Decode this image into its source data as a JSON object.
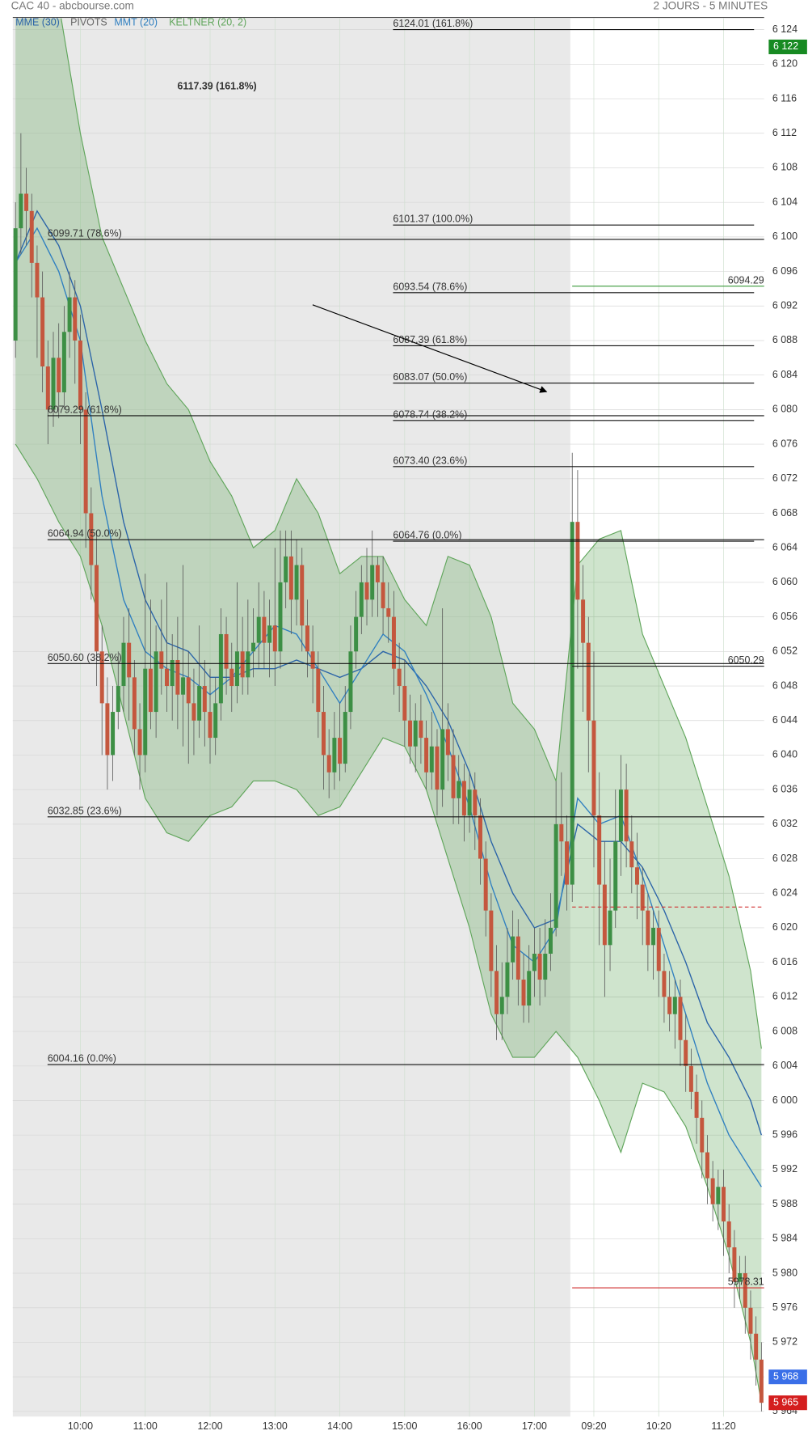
{
  "chart_data": {
    "type": "candlestick",
    "title": "CAC 40 - abcbourse.com",
    "subtitle": "2 JOURS - 5 MINUTES",
    "pivots_label": "PIVOTS",
    "color_up": "#3d8f45",
    "color_down": "#c4573e",
    "grid": true,
    "ylim": [
      5963.4,
      6125.3
    ],
    "yticks": [
      {
        "value": 5964,
        "label": "5 964"
      },
      {
        "value": 5968,
        "label": "5 968"
      },
      {
        "value": 5972,
        "label": "5 972"
      },
      {
        "value": 5976,
        "label": "5 976"
      },
      {
        "value": 5980,
        "label": "5 980"
      },
      {
        "value": 5984,
        "label": "5 984"
      },
      {
        "value": 5988,
        "label": "5 988"
      },
      {
        "value": 5992,
        "label": "5 992"
      },
      {
        "value": 5996,
        "label": "5 996"
      },
      {
        "value": 6000,
        "label": "6 000"
      },
      {
        "value": 6004,
        "label": "6 004"
      },
      {
        "value": 6008,
        "label": "6 008"
      },
      {
        "value": 6012,
        "label": "6 012"
      },
      {
        "value": 6016,
        "label": "6 016"
      },
      {
        "value": 6020,
        "label": "6 020"
      },
      {
        "value": 6024,
        "label": "6 024"
      },
      {
        "value": 6028,
        "label": "6 028"
      },
      {
        "value": 6032,
        "label": "6 032"
      },
      {
        "value": 6036,
        "label": "6 036"
      },
      {
        "value": 6040,
        "label": "6 040"
      },
      {
        "value": 6044,
        "label": "6 044"
      },
      {
        "value": 6048,
        "label": "6 048"
      },
      {
        "value": 6052,
        "label": "6 052"
      },
      {
        "value": 6056,
        "label": "6 056"
      },
      {
        "value": 6060,
        "label": "6 060"
      },
      {
        "value": 6064,
        "label": "6 064"
      },
      {
        "value": 6068,
        "label": "6 068"
      },
      {
        "value": 6072,
        "label": "6 072"
      },
      {
        "value": 6076,
        "label": "6 076"
      },
      {
        "value": 6080,
        "label": "6 080"
      },
      {
        "value": 6084,
        "label": "6 084"
      },
      {
        "value": 6088,
        "label": "6 088"
      },
      {
        "value": 6092,
        "label": "6 092"
      },
      {
        "value": 6096,
        "label": "6 096"
      },
      {
        "value": 6100,
        "label": "6 100"
      },
      {
        "value": 6104,
        "label": "6 104"
      },
      {
        "value": 6108,
        "label": "6 108"
      },
      {
        "value": 6112,
        "label": "6 112"
      },
      {
        "value": 6116,
        "label": "6 116"
      },
      {
        "value": 6120,
        "label": "6 120"
      },
      {
        "value": 6124,
        "label": "6 124"
      }
    ],
    "xticks": [
      {
        "value": 12,
        "label": "10:00"
      },
      {
        "value": 24,
        "label": "11:00"
      },
      {
        "value": 36,
        "label": "12:00"
      },
      {
        "value": 48,
        "label": "13:00"
      },
      {
        "value": 60,
        "label": "14:00"
      },
      {
        "value": 72,
        "label": "15:00"
      },
      {
        "value": 84,
        "label": "16:00"
      },
      {
        "value": 96,
        "label": "17:00"
      },
      {
        "value": 107,
        "label": "09:20"
      },
      {
        "value": 119,
        "label": "10:20"
      },
      {
        "value": 131,
        "label": "11:20"
      }
    ],
    "open": [
      6088,
      6101,
      6105,
      6103,
      6097,
      6093,
      6085,
      6080,
      6086,
      6082,
      6089,
      6093,
      6088,
      6080,
      6068,
      6062,
      6052,
      6046,
      6040,
      6045,
      6048,
      6053,
      6049,
      6043,
      6040,
      6050,
      6045,
      6052,
      6050,
      6048,
      6051,
      6047,
      6049,
      6046,
      6044,
      6048,
      6045,
      6042,
      6046,
      6054,
      6050,
      6048,
      6052,
      6049,
      6052,
      6053,
      6056,
      6053,
      6055,
      6052,
      6060,
      6063,
      6058,
      6062,
      6055,
      6052,
      6050,
      6045,
      6040,
      6038,
      6042,
      6039,
      6045,
      6052,
      6056,
      6060,
      6058,
      6062,
      6060,
      6057,
      6056,
      6050,
      6048,
      6044,
      6041,
      6044,
      6042,
      6038,
      6041,
      6036,
      6043,
      6040,
      6035,
      6037,
      6033,
      6036,
      6033,
      6028,
      6022,
      6015,
      6010,
      6012,
      6016,
      6019,
      6014,
      6011,
      6015,
      6017,
      6014,
      6017,
      6020,
      6032,
      6030,
      6025,
      6067,
      6058,
      6053,
      6044,
      6033,
      6025,
      6018,
      6022,
      6030,
      6036,
      6030,
      6027,
      6025,
      6022,
      6018,
      6020,
      6015,
      6012,
      6010,
      6012,
      6007,
      6004,
      6001,
      5998,
      5994,
      5991,
      5988,
      5990,
      5986,
      5983,
      5979,
      5980,
      5976,
      5973,
      5970
    ],
    "high": [
      6104,
      6112,
      6108,
      6105,
      6099,
      6096,
      6088,
      6089,
      6090,
      6092,
      6096,
      6095,
      6091,
      6082,
      6071,
      6066,
      6055,
      6049,
      6048,
      6052,
      6056,
      6057,
      6051,
      6046,
      6061,
      6058,
      6055,
      6058,
      6060,
      6054,
      6056,
      6062,
      6052,
      6050,
      6055,
      6051,
      6050,
      6049,
      6057,
      6056,
      6053,
      6060,
      6056,
      6058,
      6057,
      6060,
      6059,
      6058,
      6064,
      6066,
      6066,
      6066,
      6065,
      6064,
      6058,
      6055,
      6052,
      6048,
      6043,
      6045,
      6046,
      6048,
      6055,
      6059,
      6062,
      6064,
      6066,
      6063,
      6063,
      6060,
      6059,
      6053,
      6051,
      6047,
      6046,
      6047,
      6044,
      6045,
      6043,
      6057,
      6046,
      6043,
      6040,
      6039,
      6038,
      6038,
      6035,
      6030,
      6024,
      6018,
      6016,
      6020,
      6022,
      6021,
      6017,
      6018,
      6020,
      6020,
      6021,
      6024,
      6037,
      6038,
      6033,
      6075,
      6073,
      6062,
      6056,
      6052,
      6038,
      6030,
      6028,
      6036,
      6040,
      6039,
      6033,
      6031,
      6027,
      6024,
      6022,
      6022,
      6017,
      6015,
      6014,
      6014,
      6010,
      6006,
      6003,
      6000,
      5996,
      5993,
      5992,
      5992,
      5988,
      5985,
      5982,
      5982,
      5978,
      5975,
      5972
    ],
    "low": [
      6086,
      6098,
      6099,
      6093,
      6086,
      6082,
      6076,
      6078,
      6079,
      6080,
      6086,
      6083,
      6076,
      6064,
      6058,
      6048,
      6040,
      6036,
      6037,
      6043,
      6045,
      6044,
      6040,
      6036,
      6038,
      6043,
      6042,
      6047,
      6045,
      6044,
      6043,
      6041,
      6039,
      6040,
      6042,
      6041,
      6039,
      6040,
      6044,
      6047,
      6045,
      6046,
      6047,
      6047,
      6049,
      6050,
      6050,
      6049,
      6048,
      6050,
      6057,
      6054,
      6055,
      6052,
      6049,
      6046,
      6042,
      6036,
      6035,
      6036,
      6037,
      6038,
      6043,
      6050,
      6054,
      6055,
      6056,
      6056,
      6054,
      6053,
      6047,
      6045,
      6041,
      6039,
      6038,
      6039,
      6036,
      6036,
      6033,
      6034,
      6037,
      6032,
      6032,
      6030,
      6031,
      6029,
      6025,
      6019,
      6012,
      6007,
      6007,
      6010,
      6014,
      6011,
      6009,
      6009,
      6012,
      6011,
      6012,
      6015,
      6019,
      6026,
      6022,
      6023,
      6050,
      6045,
      6038,
      6027,
      6018,
      6012,
      6015,
      6020,
      6026,
      6027,
      6024,
      6021,
      6018,
      6015,
      6014,
      6012,
      6009,
      6008,
      6006,
      6004,
      6001,
      5999,
      5995,
      5991,
      5988,
      5986,
      5985,
      5982,
      5980,
      5976,
      5977,
      5973,
      5970,
      5967,
      5964
    ],
    "close": [
      6101,
      6105,
      6103,
      6097,
      6093,
      6085,
      6080,
      6086,
      6082,
      6089,
      6093,
      6088,
      6080,
      6068,
      6062,
      6052,
      6046,
      6040,
      6045,
      6048,
      6053,
      6049,
      6043,
      6040,
      6050,
      6045,
      6052,
      6050,
      6048,
      6051,
      6047,
      6049,
      6046,
      6044,
      6048,
      6045,
      6042,
      6046,
      6054,
      6050,
      6048,
      6052,
      6049,
      6052,
      6053,
      6056,
      6053,
      6055,
      6052,
      6060,
      6063,
      6058,
      6062,
      6055,
      6052,
      6050,
      6045,
      6040,
      6038,
      6042,
      6039,
      6045,
      6052,
      6056,
      6060,
      6058,
      6062,
      6060,
      6057,
      6056,
      6050,
      6048,
      6044,
      6041,
      6044,
      6042,
      6038,
      6041,
      6036,
      6043,
      6040,
      6035,
      6037,
      6033,
      6036,
      6033,
      6028,
      6022,
      6015,
      6010,
      6012,
      6016,
      6019,
      6014,
      6011,
      6015,
      6017,
      6014,
      6017,
      6020,
      6032,
      6030,
      6025,
      6067,
      6058,
      6053,
      6044,
      6033,
      6025,
      6018,
      6022,
      6030,
      6036,
      6030,
      6027,
      6025,
      6022,
      6018,
      6020,
      6015,
      6012,
      6010,
      6012,
      6007,
      6004,
      6001,
      5998,
      5994,
      5991,
      5988,
      5990,
      5986,
      5983,
      5979,
      5980,
      5976,
      5973,
      5970,
      5965
    ],
    "indicators": {
      "x": [
        0,
        4,
        8,
        12,
        16,
        20,
        24,
        28,
        32,
        36,
        40,
        44,
        48,
        52,
        56,
        60,
        64,
        68,
        72,
        76,
        80,
        84,
        88,
        92,
        96,
        100,
        104,
        108,
        112,
        116,
        120,
        124,
        128,
        132,
        136,
        138
      ],
      "series": [
        {
          "name": "MME (30)",
          "color": "#2a63a8",
          "values": [
            6097,
            6103,
            6099,
            6092,
            6080,
            6067,
            6058,
            6053,
            6052,
            6049,
            6049,
            6050,
            6050,
            6051,
            6050,
            6049,
            6050,
            6052,
            6051,
            6048,
            6044,
            6038,
            6030,
            6024,
            6020,
            6021,
            6032,
            6030,
            6030,
            6027,
            6022,
            6016,
            6009,
            6005,
            6000,
            5996
          ]
        },
        {
          "name": "MMT (20)",
          "color": "#2f7fc0",
          "values": [
            6097,
            6101,
            6096,
            6088,
            6070,
            6058,
            6052,
            6050,
            6049,
            6047,
            6049,
            6052,
            6055,
            6054,
            6050,
            6046,
            6050,
            6054,
            6052,
            6047,
            6041,
            6034,
            6025,
            6018,
            6016,
            6020,
            6035,
            6032,
            6033,
            6026,
            6018,
            6010,
            6002,
            5996,
            5992,
            5990
          ]
        }
      ],
      "keltner": {
        "name": "KELTNER (20, 2)",
        "color": "#5fa55a",
        "upper": [
          6127,
          6127,
          6127,
          6112,
          6100,
          6094,
          6088,
          6083,
          6080,
          6074,
          6070,
          6064,
          6066,
          6072,
          6068,
          6061,
          6063,
          6063,
          6058,
          6055,
          6063,
          6062,
          6056,
          6046,
          6043,
          6037,
          6062,
          6065,
          6066,
          6054,
          6048,
          6042,
          6034,
          6026,
          6015,
          6006
        ],
        "lower": [
          6076,
          6072,
          6067,
          6063,
          6055,
          6045,
          6035,
          6031,
          6030,
          6033,
          6034,
          6037,
          6037,
          6036,
          6033,
          6034,
          6038,
          6042,
          6041,
          6036,
          6028,
          6020,
          6010,
          6005,
          6005,
          6008,
          6005,
          6000,
          5994,
          6002,
          6001,
          5997,
          5990,
          5982,
          5972,
          5965
        ]
      }
    },
    "fibonacci_left": [
      {
        "value": 6099.71,
        "label": "6099.71  (78.6%)"
      },
      {
        "value": 6079.29,
        "label": "6079.29  (61.8%)"
      },
      {
        "value": 6064.94,
        "label": "6064.94  (50.0%)"
      },
      {
        "value": 6050.6,
        "label": "6050.60  (38.2%)"
      },
      {
        "value": 6032.85,
        "label": "6032.85  (23.6%)"
      },
      {
        "value": 6004.16,
        "label": "6004.16  (0.0%)"
      }
    ],
    "fibonacci_right": [
      {
        "value": 6124.01,
        "label": "6124.01  (161.8%)"
      },
      {
        "value": 6101.37,
        "label": "6101.37  (100.0%)"
      },
      {
        "value": 6093.54,
        "label": "6093.54  (78.6%)"
      },
      {
        "value": 6087.39,
        "label": "6087.39  (61.8%)"
      },
      {
        "value": 6083.07,
        "label": "6083.07  (50.0%)"
      },
      {
        "value": 6078.74,
        "label": "6078.74  (38.2%)"
      },
      {
        "value": 6073.4,
        "label": "6073.40  (23.6%)"
      },
      {
        "value": 6064.76,
        "label": "6064.76  (0.0%)"
      }
    ],
    "annotation": {
      "value": 6117.39,
      "label": "6117.39  (161.8%)"
    },
    "levels": [
      {
        "value": 6094.29,
        "label": "6094.29",
        "color": "#3b9a3b"
      },
      {
        "value": 6050.29,
        "label": "6050.29",
        "color": "#222222"
      },
      {
        "value": 6022.4,
        "color": "#d03030",
        "dashed": true
      },
      {
        "value": 5978.31,
        "label": "5978.31",
        "color": "#d03030"
      }
    ],
    "price_tags": [
      {
        "value": 6122,
        "label": "6 122",
        "color": "#178a22"
      },
      {
        "value": 5968,
        "label": "5 968",
        "color": "#3a6fe8"
      },
      {
        "value": 5965,
        "label": "5 965",
        "color": "#d41e1e"
      }
    ]
  }
}
